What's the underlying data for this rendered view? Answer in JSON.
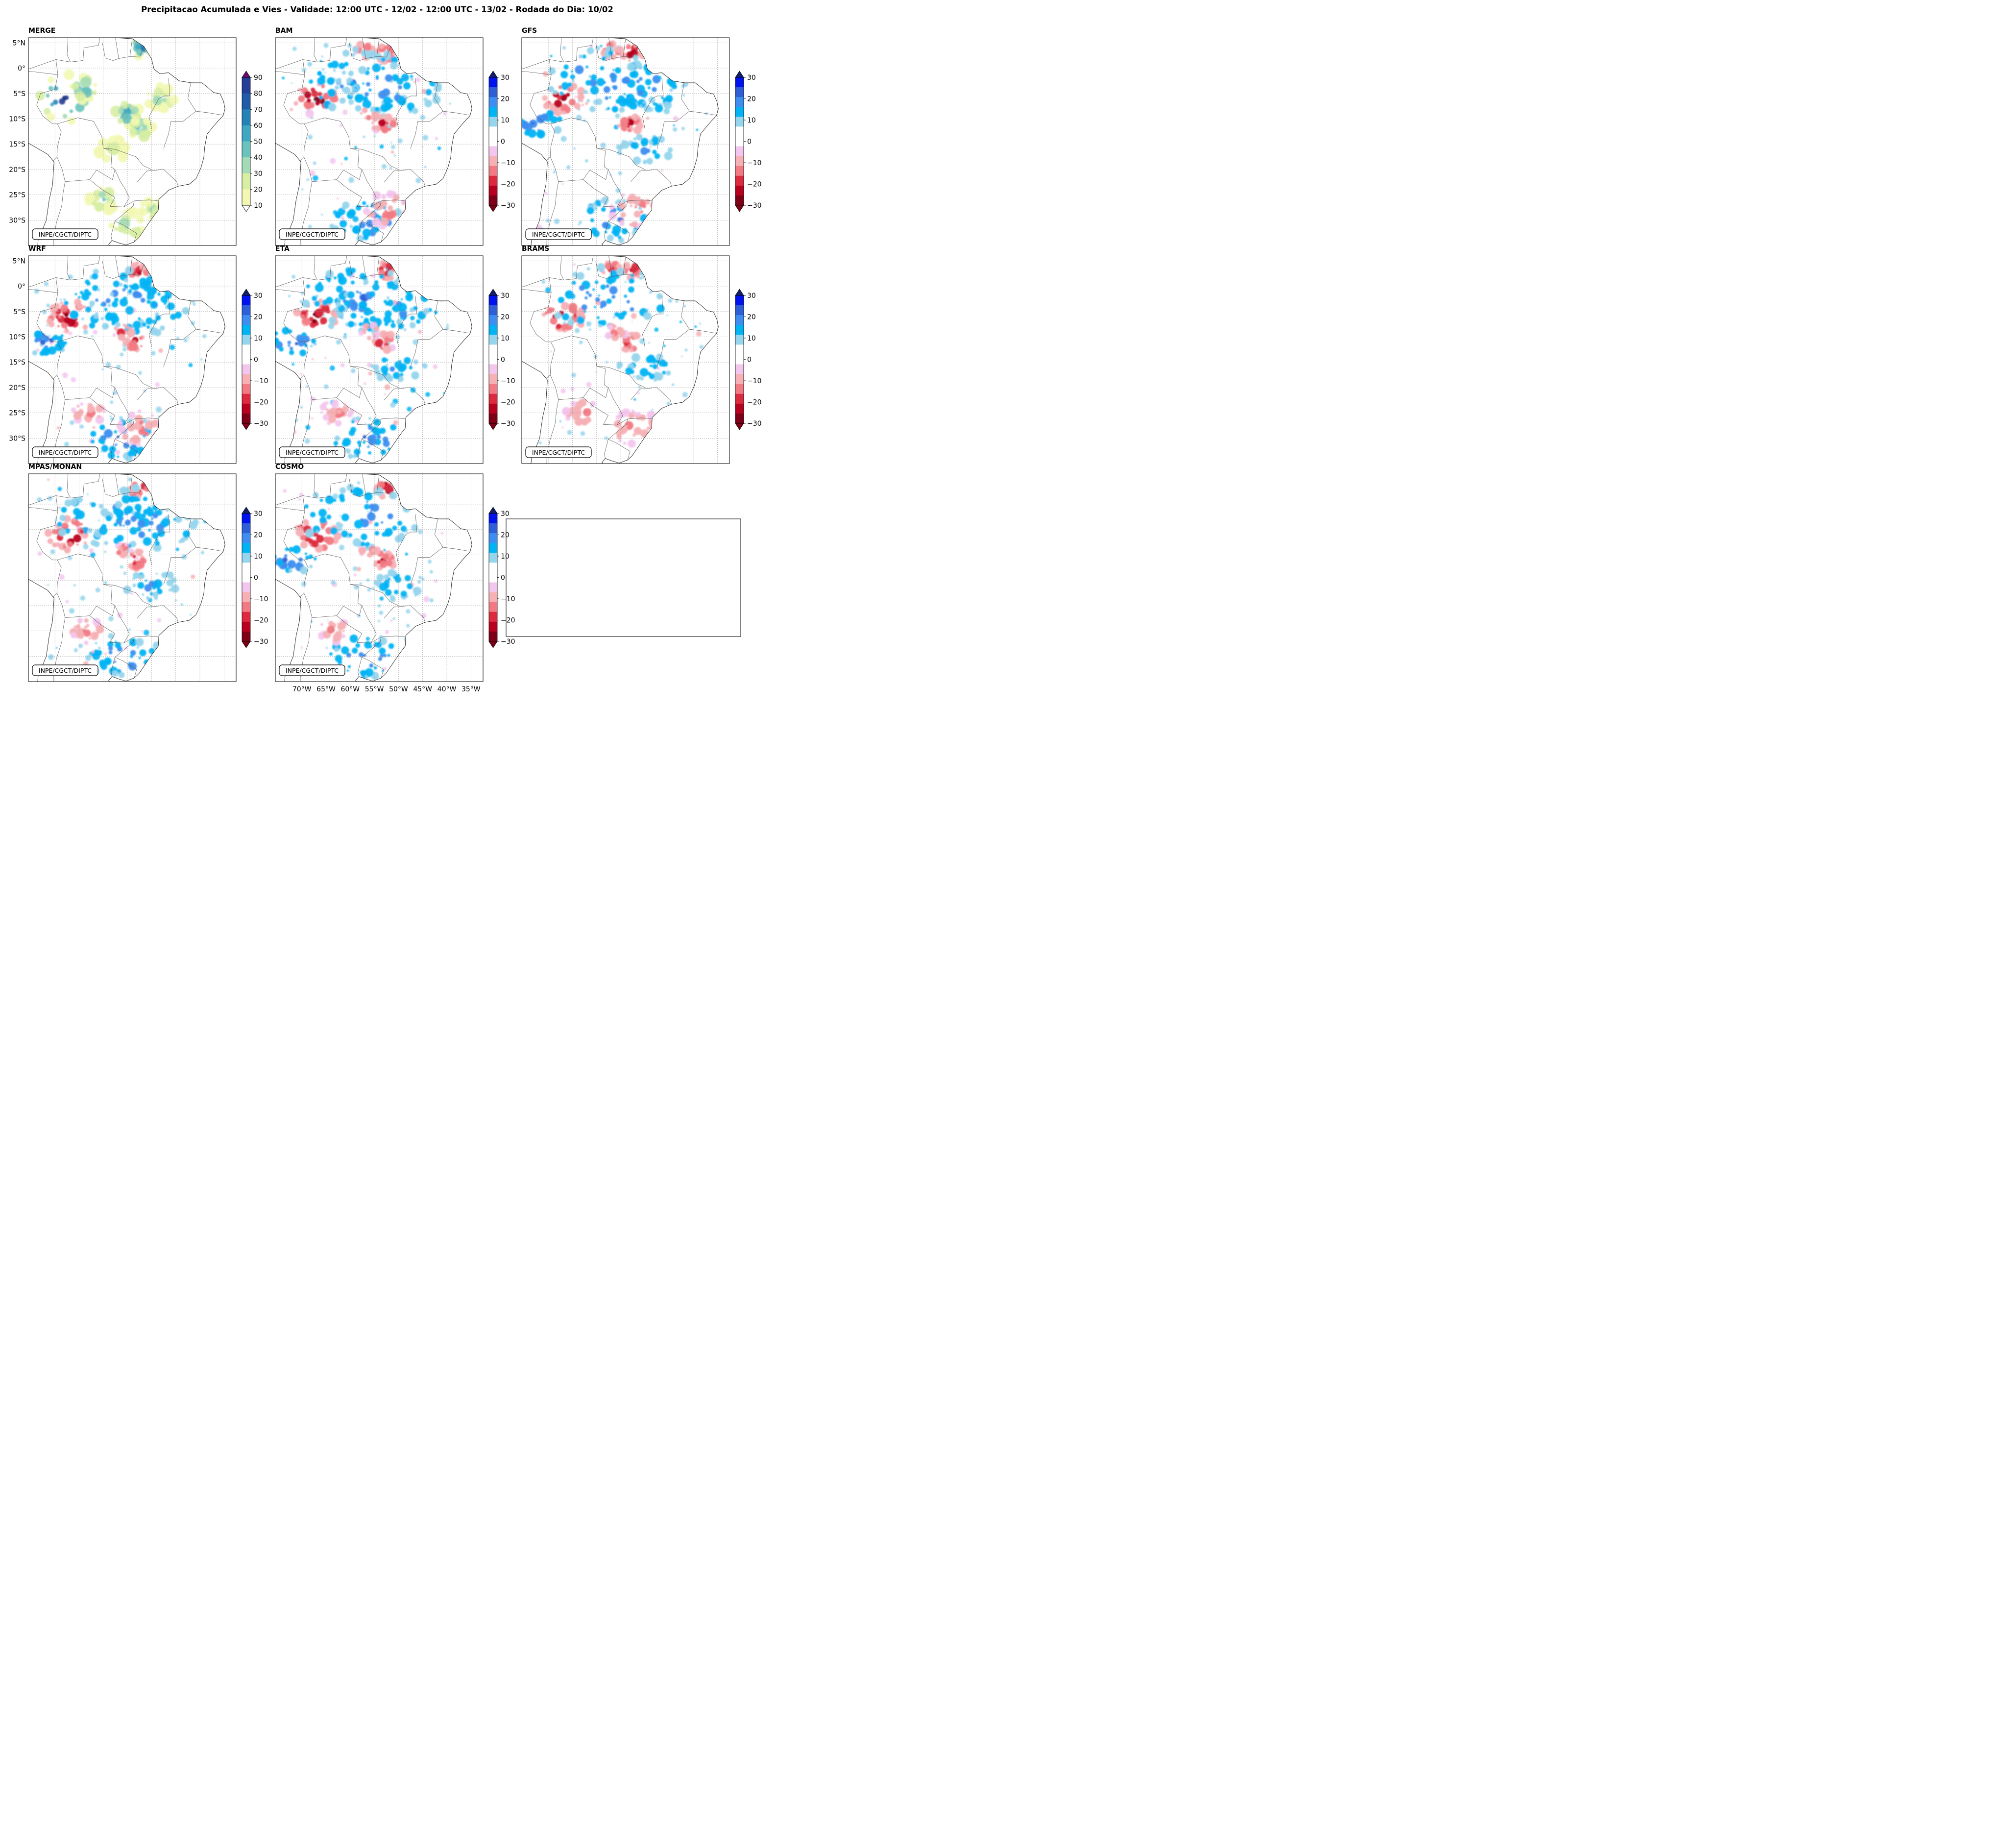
{
  "title": "Precipitacao Acumulada e Vies - Validade: 12:00 UTC - 12/02 - 12:00 UTC - 13/02 - Rodada do Dia: 10/02",
  "credit": "INPE/CGCT/DIPTC",
  "lat_labels": [
    "5°N",
    "0°",
    "5°S",
    "10°S",
    "15°S",
    "20°S",
    "25°S",
    "30°S"
  ],
  "lon_labels": [
    "70°W",
    "65°W",
    "60°W",
    "55°W",
    "50°W",
    "45°W",
    "40°W",
    "35°W"
  ],
  "colors": {
    "coast": "#222222",
    "border": "#555555",
    "gridline": "#999999",
    "accum_scale": [
      "#f2f8b3",
      "#d7eea4",
      "#a4dbb6",
      "#6cc3bd",
      "#3ea7c2",
      "#2383b7",
      "#215aa5",
      "#233e92",
      "#141f5e",
      "#6a0b6a"
    ],
    "bias_negative": [
      "#7d0017",
      "#b8001f",
      "#dc2a3f",
      "#f27a83",
      "#f7b0b4",
      "#f3c6ee"
    ],
    "bias_positive": [
      "#95d5ed",
      "#00b4f4",
      "#3d8ef0",
      "#2f5fd7",
      "#0013ee",
      "#12206b"
    ]
  },
  "panels": [
    {
      "name": "MERGE",
      "kind": "accum"
    },
    {
      "name": "BAM",
      "kind": "bias"
    },
    {
      "name": "GFS",
      "kind": "bias"
    },
    {
      "name": "WRF",
      "kind": "bias"
    },
    {
      "name": "ETA",
      "kind": "bias"
    },
    {
      "name": "BRAMS",
      "kind": "bias"
    },
    {
      "name": "MPAS/MONAN",
      "kind": "bias"
    },
    {
      "name": "COSMO",
      "kind": "bias"
    }
  ],
  "colorbars": {
    "accum": {
      "ticks": [
        "90",
        "80",
        "70",
        "60",
        "50",
        "40",
        "30",
        "20",
        "10"
      ]
    },
    "bias": {
      "ticks": [
        "30",
        "20",
        "10",
        "0",
        "−10",
        "−20",
        "−30"
      ]
    }
  }
}
